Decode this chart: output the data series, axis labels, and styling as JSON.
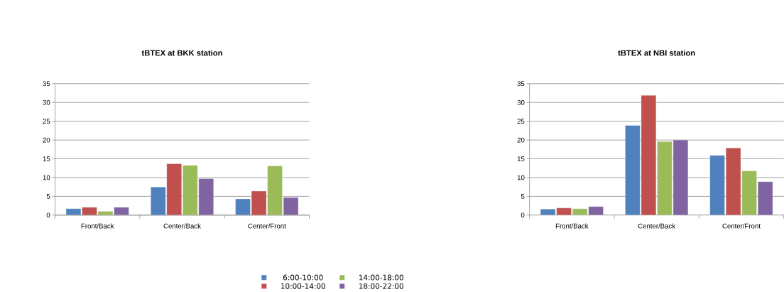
{
  "chart_data": [
    {
      "type": "bar",
      "title": "tBTEX at BKK station",
      "categories": [
        "Front/Back",
        "Center/Back",
        "Center/Front"
      ],
      "ylim": [
        0,
        35
      ],
      "yticks": [
        0,
        5,
        10,
        15,
        20,
        25,
        30,
        35
      ],
      "grid": "y",
      "legend": "bottom",
      "series": [
        {
          "name": "6:00-10:00",
          "color": "#4f81bd",
          "values": [
            1.7,
            7.5,
            4.3
          ]
        },
        {
          "name": "10:00-14:00",
          "color": "#c0504d",
          "values": [
            2.1,
            13.7,
            6.4
          ]
        },
        {
          "name": "14:00-18:00",
          "color": "#9bbb59",
          "values": [
            1.0,
            13.3,
            13.1
          ]
        },
        {
          "name": "18:00-22:00",
          "color": "#8064a2",
          "values": [
            2.1,
            9.7,
            4.7
          ]
        }
      ]
    },
    {
      "type": "bar",
      "title": "tBTEX at NBI station",
      "categories": [
        "Front/Back",
        "Center/Back",
        "Center/Front"
      ],
      "ylim": [
        0,
        35
      ],
      "yticks": [
        0,
        5,
        10,
        15,
        20,
        25,
        30,
        35
      ],
      "grid": "y",
      "series": [
        {
          "color": "#4f81bd",
          "values": [
            1.6,
            23.9,
            15.9
          ]
        },
        {
          "color": "#c0504d",
          "values": [
            1.9,
            31.9,
            17.9
          ]
        },
        {
          "color": "#9bbb59",
          "values": [
            1.7,
            19.6,
            11.8
          ]
        },
        {
          "color": "#8064a2",
          "values": [
            2.3,
            20.0,
            8.9
          ]
        }
      ]
    }
  ]
}
